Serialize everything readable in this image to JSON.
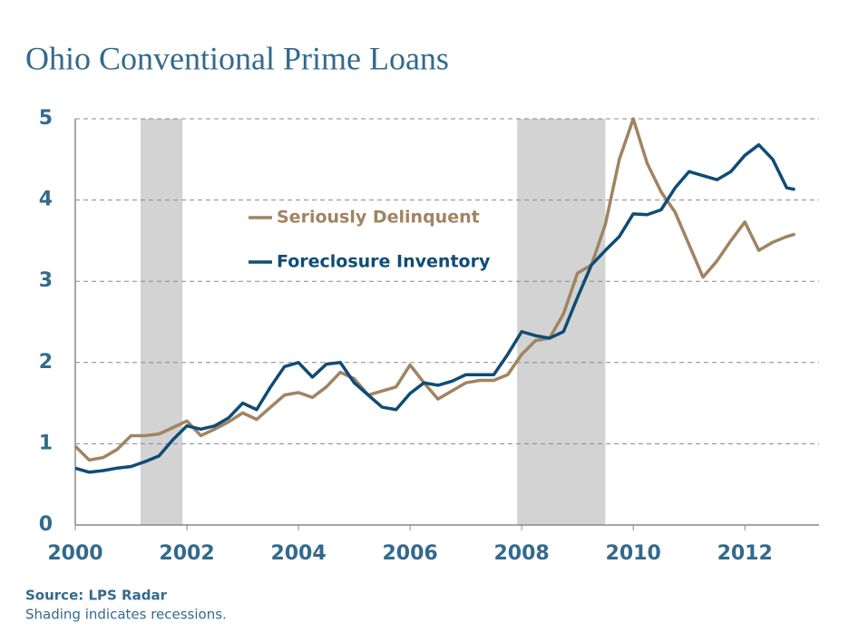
{
  "chart_data": {
    "type": "line",
    "title": "Ohio Conventional Prime Loans",
    "source": "Source: LPS Radar",
    "note": "Shading indicates recessions.",
    "x": [
      2000,
      2000.25,
      2000.5,
      2000.75,
      2001,
      2001.25,
      2001.5,
      2001.75,
      2002,
      2002.25,
      2002.5,
      2002.75,
      2003,
      2003.25,
      2003.5,
      2003.75,
      2004,
      2004.25,
      2004.5,
      2004.75,
      2005,
      2005.25,
      2005.5,
      2005.75,
      2006,
      2006.25,
      2006.5,
      2006.75,
      2007,
      2007.25,
      2007.5,
      2007.75,
      2008,
      2008.25,
      2008.5,
      2008.75,
      2009,
      2009.25,
      2009.5,
      2009.75,
      2010,
      2010.25,
      2010.5,
      2010.75,
      2011,
      2011.25,
      2011.5,
      2011.75,
      2012,
      2012.25,
      2012.5,
      2012.75,
      2012.9
    ],
    "series": [
      {
        "name": "Seriously Delinquent",
        "color": "#a08462",
        "values": [
          0.97,
          0.8,
          0.83,
          0.93,
          1.1,
          1.1,
          1.12,
          1.2,
          1.28,
          1.1,
          1.18,
          1.27,
          1.38,
          1.3,
          1.45,
          1.6,
          1.63,
          1.57,
          1.7,
          1.88,
          1.8,
          1.6,
          1.65,
          1.7,
          1.97,
          1.75,
          1.55,
          1.65,
          1.75,
          1.78,
          1.78,
          1.85,
          2.1,
          2.27,
          2.3,
          2.6,
          3.1,
          3.2,
          3.7,
          4.5,
          5.0,
          4.45,
          4.1,
          3.85,
          3.45,
          3.05,
          3.25,
          3.5,
          3.73,
          3.38,
          3.48,
          3.55,
          3.58
        ]
      },
      {
        "name": "Foreclosure Inventory",
        "color": "#0f4c75",
        "values": [
          0.7,
          0.65,
          0.67,
          0.7,
          0.72,
          0.78,
          0.85,
          1.05,
          1.22,
          1.18,
          1.22,
          1.32,
          1.5,
          1.42,
          1.7,
          1.95,
          2.0,
          1.82,
          1.98,
          2.0,
          1.75,
          1.6,
          1.45,
          1.42,
          1.62,
          1.75,
          1.72,
          1.77,
          1.85,
          1.85,
          1.85,
          2.1,
          2.38,
          2.33,
          2.3,
          2.38,
          2.8,
          3.2,
          3.38,
          3.55,
          3.83,
          3.82,
          3.88,
          4.15,
          4.35,
          4.3,
          4.25,
          4.35,
          4.55,
          4.68,
          4.5,
          4.15,
          4.13
        ]
      }
    ],
    "recessions": [
      [
        2001.17,
        2001.92
      ],
      [
        2007.92,
        2009.5
      ]
    ],
    "recession_color": "#d3d3d3",
    "xlim": [
      2000,
      2013.33
    ],
    "xticks": [
      2000,
      2002,
      2004,
      2006,
      2008,
      2010,
      2012
    ],
    "ylim": [
      0,
      5
    ],
    "yticks": [
      0,
      1,
      2,
      3,
      4,
      5
    ],
    "grid": true
  }
}
